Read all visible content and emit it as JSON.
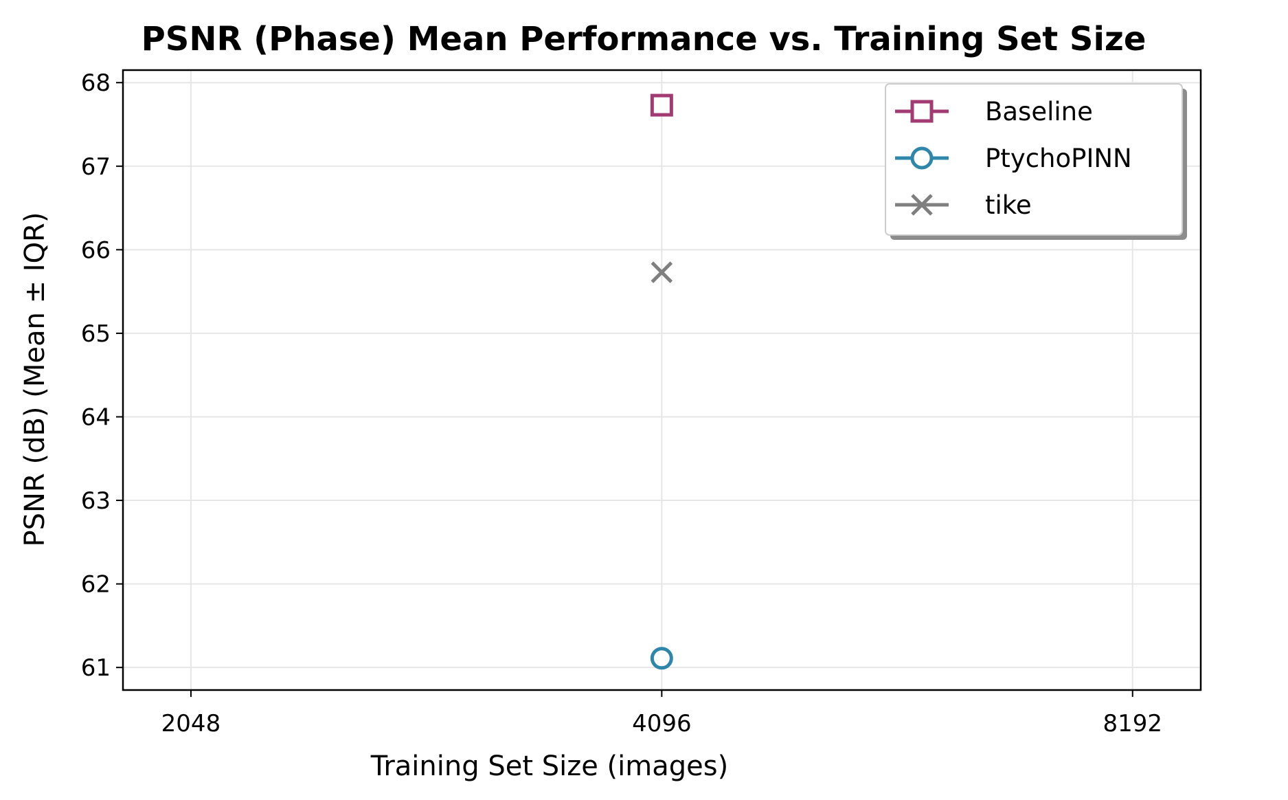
{
  "chart_data": {
    "type": "scatter",
    "title": "PSNR (Phase) Mean Performance vs. Training Set Size",
    "xlabel": "Training Set Size (images)",
    "ylabel": "PSNR (dB) (Mean ± IQR)",
    "x_scale": "log2",
    "x_ticks": [
      "2048",
      "4096",
      "8192"
    ],
    "x_tick_values": [
      2048,
      4096,
      8192
    ],
    "y_ticks": [
      "61",
      "62",
      "63",
      "64",
      "65",
      "66",
      "67",
      "68"
    ],
    "y_tick_values": [
      61,
      62,
      63,
      64,
      65,
      66,
      67,
      68
    ],
    "xlim": [
      1853,
      9057
    ],
    "ylim": [
      60.73,
      68.15
    ],
    "grid": true,
    "legend_position": "top-right",
    "series": [
      {
        "name": "Baseline",
        "marker": "square",
        "color": "#a23b72",
        "points": [
          {
            "x": 4096,
            "y": 67.73
          }
        ]
      },
      {
        "name": "PtychoPINN",
        "marker": "circle",
        "color": "#2e86ab",
        "points": [
          {
            "x": 4096,
            "y": 61.11
          }
        ]
      },
      {
        "name": "tike",
        "marker": "x",
        "color": "#7f7f7f",
        "points": [
          {
            "x": 4096,
            "y": 65.73
          }
        ]
      }
    ]
  }
}
